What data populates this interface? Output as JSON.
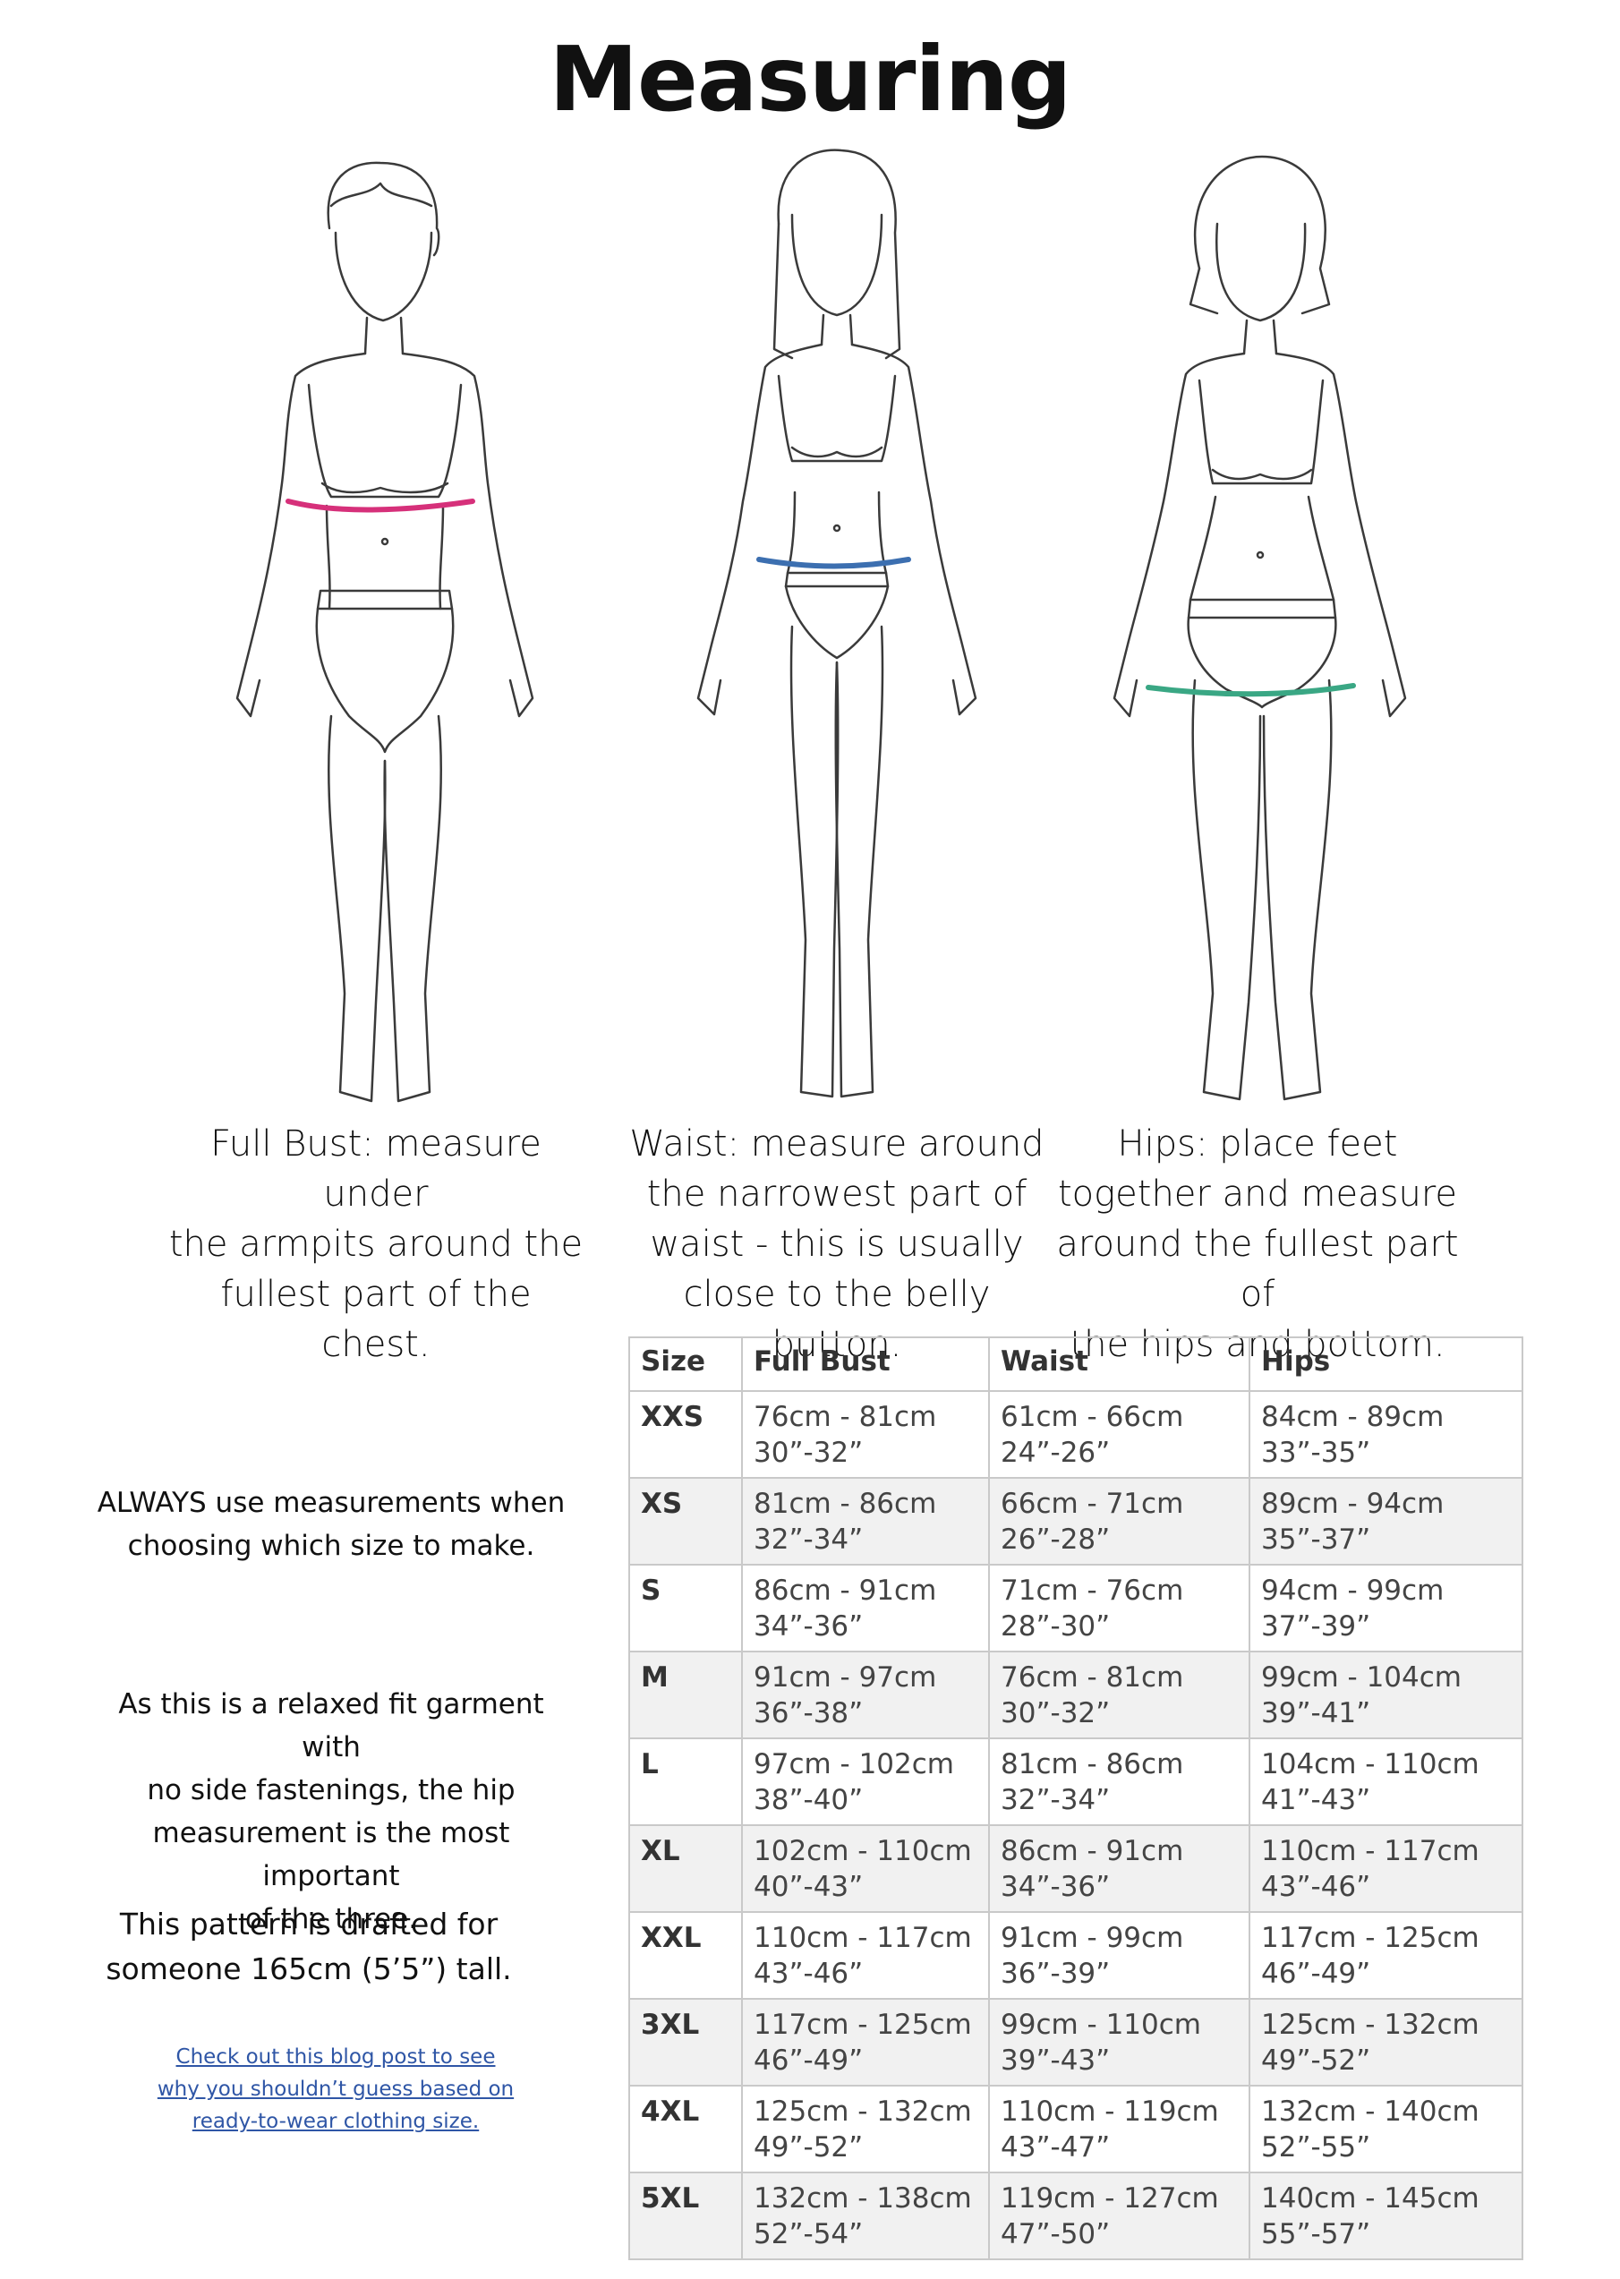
{
  "title": "Measuring",
  "colors": {
    "bust_line": "#d6307a",
    "waist_line": "#3c6fb0",
    "hips_line": "#3aa784",
    "link": "#2f56a6",
    "table_border": "#c9c9c9",
    "stripe": "#f1f1f1"
  },
  "captions": {
    "bust": [
      "Full Bust: measure under",
      "the armpits around the",
      "fullest part of the chest."
    ],
    "waist": [
      "Waist: measure around",
      "the narrowest part of",
      "waist - this is usually",
      "close to the belly button."
    ],
    "hips": [
      "Hips: place feet",
      "together and measure",
      "around the fullest part of",
      "the hips and bottom."
    ]
  },
  "notes": {
    "always": [
      "ALWAYS use measurements when",
      "choosing which size to make."
    ],
    "relaxed": [
      "As this is a relaxed fit garment with",
      "no side fastenings, the hip",
      "measurement is the most important",
      "of the three."
    ],
    "drafted": [
      "This pattern is drafted for",
      "someone 165cm (5’5”) tall."
    ]
  },
  "link_lines": [
    "Check out this blog post to see ",
    "why you shouldn’t guess based on ",
    "ready-to-wear clothing size. "
  ],
  "table": {
    "headers": [
      "Size",
      "Full Bust",
      "Waist",
      "Hips"
    ],
    "rows": [
      {
        "size": "XXS",
        "bust": [
          "76cm - 81cm",
          "30”-32”"
        ],
        "waist": [
          "61cm - 66cm",
          "24”-26”"
        ],
        "hips": [
          "84cm - 89cm",
          "33”-35”"
        ]
      },
      {
        "size": "XS",
        "bust": [
          "81cm - 86cm",
          "32”-34”"
        ],
        "waist": [
          "66cm - 71cm",
          "26”-28”"
        ],
        "hips": [
          "89cm - 94cm",
          "35”-37”"
        ]
      },
      {
        "size": "S",
        "bust": [
          "86cm - 91cm",
          "34”-36”"
        ],
        "waist": [
          "71cm - 76cm",
          "28”-30”"
        ],
        "hips": [
          "94cm - 99cm",
          "37”-39”"
        ]
      },
      {
        "size": "M",
        "bust": [
          "91cm - 97cm",
          "36”-38”"
        ],
        "waist": [
          "76cm - 81cm",
          "30”-32”"
        ],
        "hips": [
          "99cm - 104cm",
          "39”-41”"
        ]
      },
      {
        "size": "L",
        "bust": [
          "97cm - 102cm",
          "38”-40”"
        ],
        "waist": [
          "81cm - 86cm",
          "32”-34”"
        ],
        "hips": [
          "104cm - 110cm",
          "41”-43”"
        ]
      },
      {
        "size": "XL",
        "bust": [
          "102cm - 110cm",
          "40”-43”"
        ],
        "waist": [
          "86cm - 91cm",
          "34”-36”"
        ],
        "hips": [
          "110cm - 117cm",
          "43”-46”"
        ]
      },
      {
        "size": "XXL",
        "bust": [
          "110cm - 117cm",
          "43”-46”"
        ],
        "waist": [
          "91cm - 99cm",
          "36”-39”"
        ],
        "hips": [
          "117cm - 125cm",
          "46”-49”"
        ]
      },
      {
        "size": "3XL",
        "bust": [
          "117cm - 125cm",
          "46”-49”"
        ],
        "waist": [
          "99cm - 110cm",
          "39”-43”"
        ],
        "hips": [
          "125cm - 132cm",
          "49”-52”"
        ]
      },
      {
        "size": "4XL",
        "bust": [
          "125cm - 132cm",
          "49”-52”"
        ],
        "waist": [
          "110cm - 119cm",
          "43”-47”"
        ],
        "hips": [
          "132cm - 140cm",
          "52”-55”"
        ]
      },
      {
        "size": "5XL",
        "bust": [
          "132cm - 138cm",
          "52”-54”"
        ],
        "waist": [
          "119cm - 127cm",
          "47”-50”"
        ],
        "hips": [
          "140cm - 145cm",
          "55”-57”"
        ]
      }
    ]
  }
}
